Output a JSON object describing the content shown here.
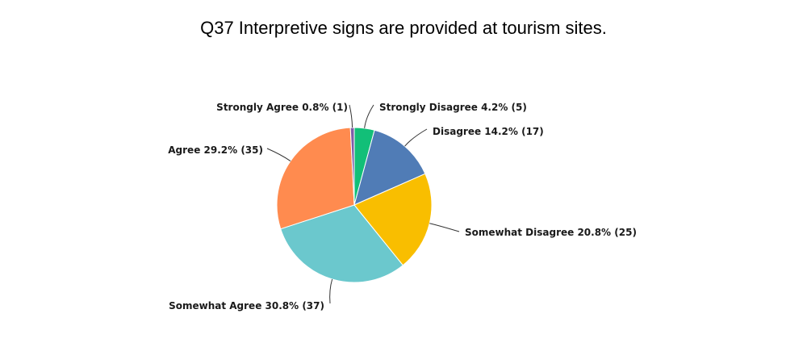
{
  "chart_data": {
    "type": "pie",
    "title": "Q37 Interpretive signs are provided at tourism sites.",
    "slices": [
      {
        "name": "Strongly Disagree",
        "percent": 4.2,
        "count": 5,
        "label": "Strongly Disagree 4.2% (5)",
        "color": "#12BF78"
      },
      {
        "name": "Disagree",
        "percent": 14.2,
        "count": 17,
        "label": "Disagree 14.2% (17)",
        "color": "#507CB6"
      },
      {
        "name": "Somewhat Disagree",
        "percent": 20.8,
        "count": 25,
        "label": "Somewhat Disagree 20.8% (25)",
        "color": "#F9BE00"
      },
      {
        "name": "Somewhat Agree",
        "percent": 30.8,
        "count": 37,
        "label": "Somewhat Agree 30.8% (37)",
        "color": "#6BC8CD"
      },
      {
        "name": "Agree",
        "percent": 29.2,
        "count": 35,
        "label": "Agree 29.2% (35)",
        "color": "#FF8B4F"
      },
      {
        "name": "Strongly Agree",
        "percent": 0.8,
        "count": 1,
        "label": "Strongly Agree 0.8% (1)",
        "color": "#7D5CA8"
      }
    ]
  }
}
